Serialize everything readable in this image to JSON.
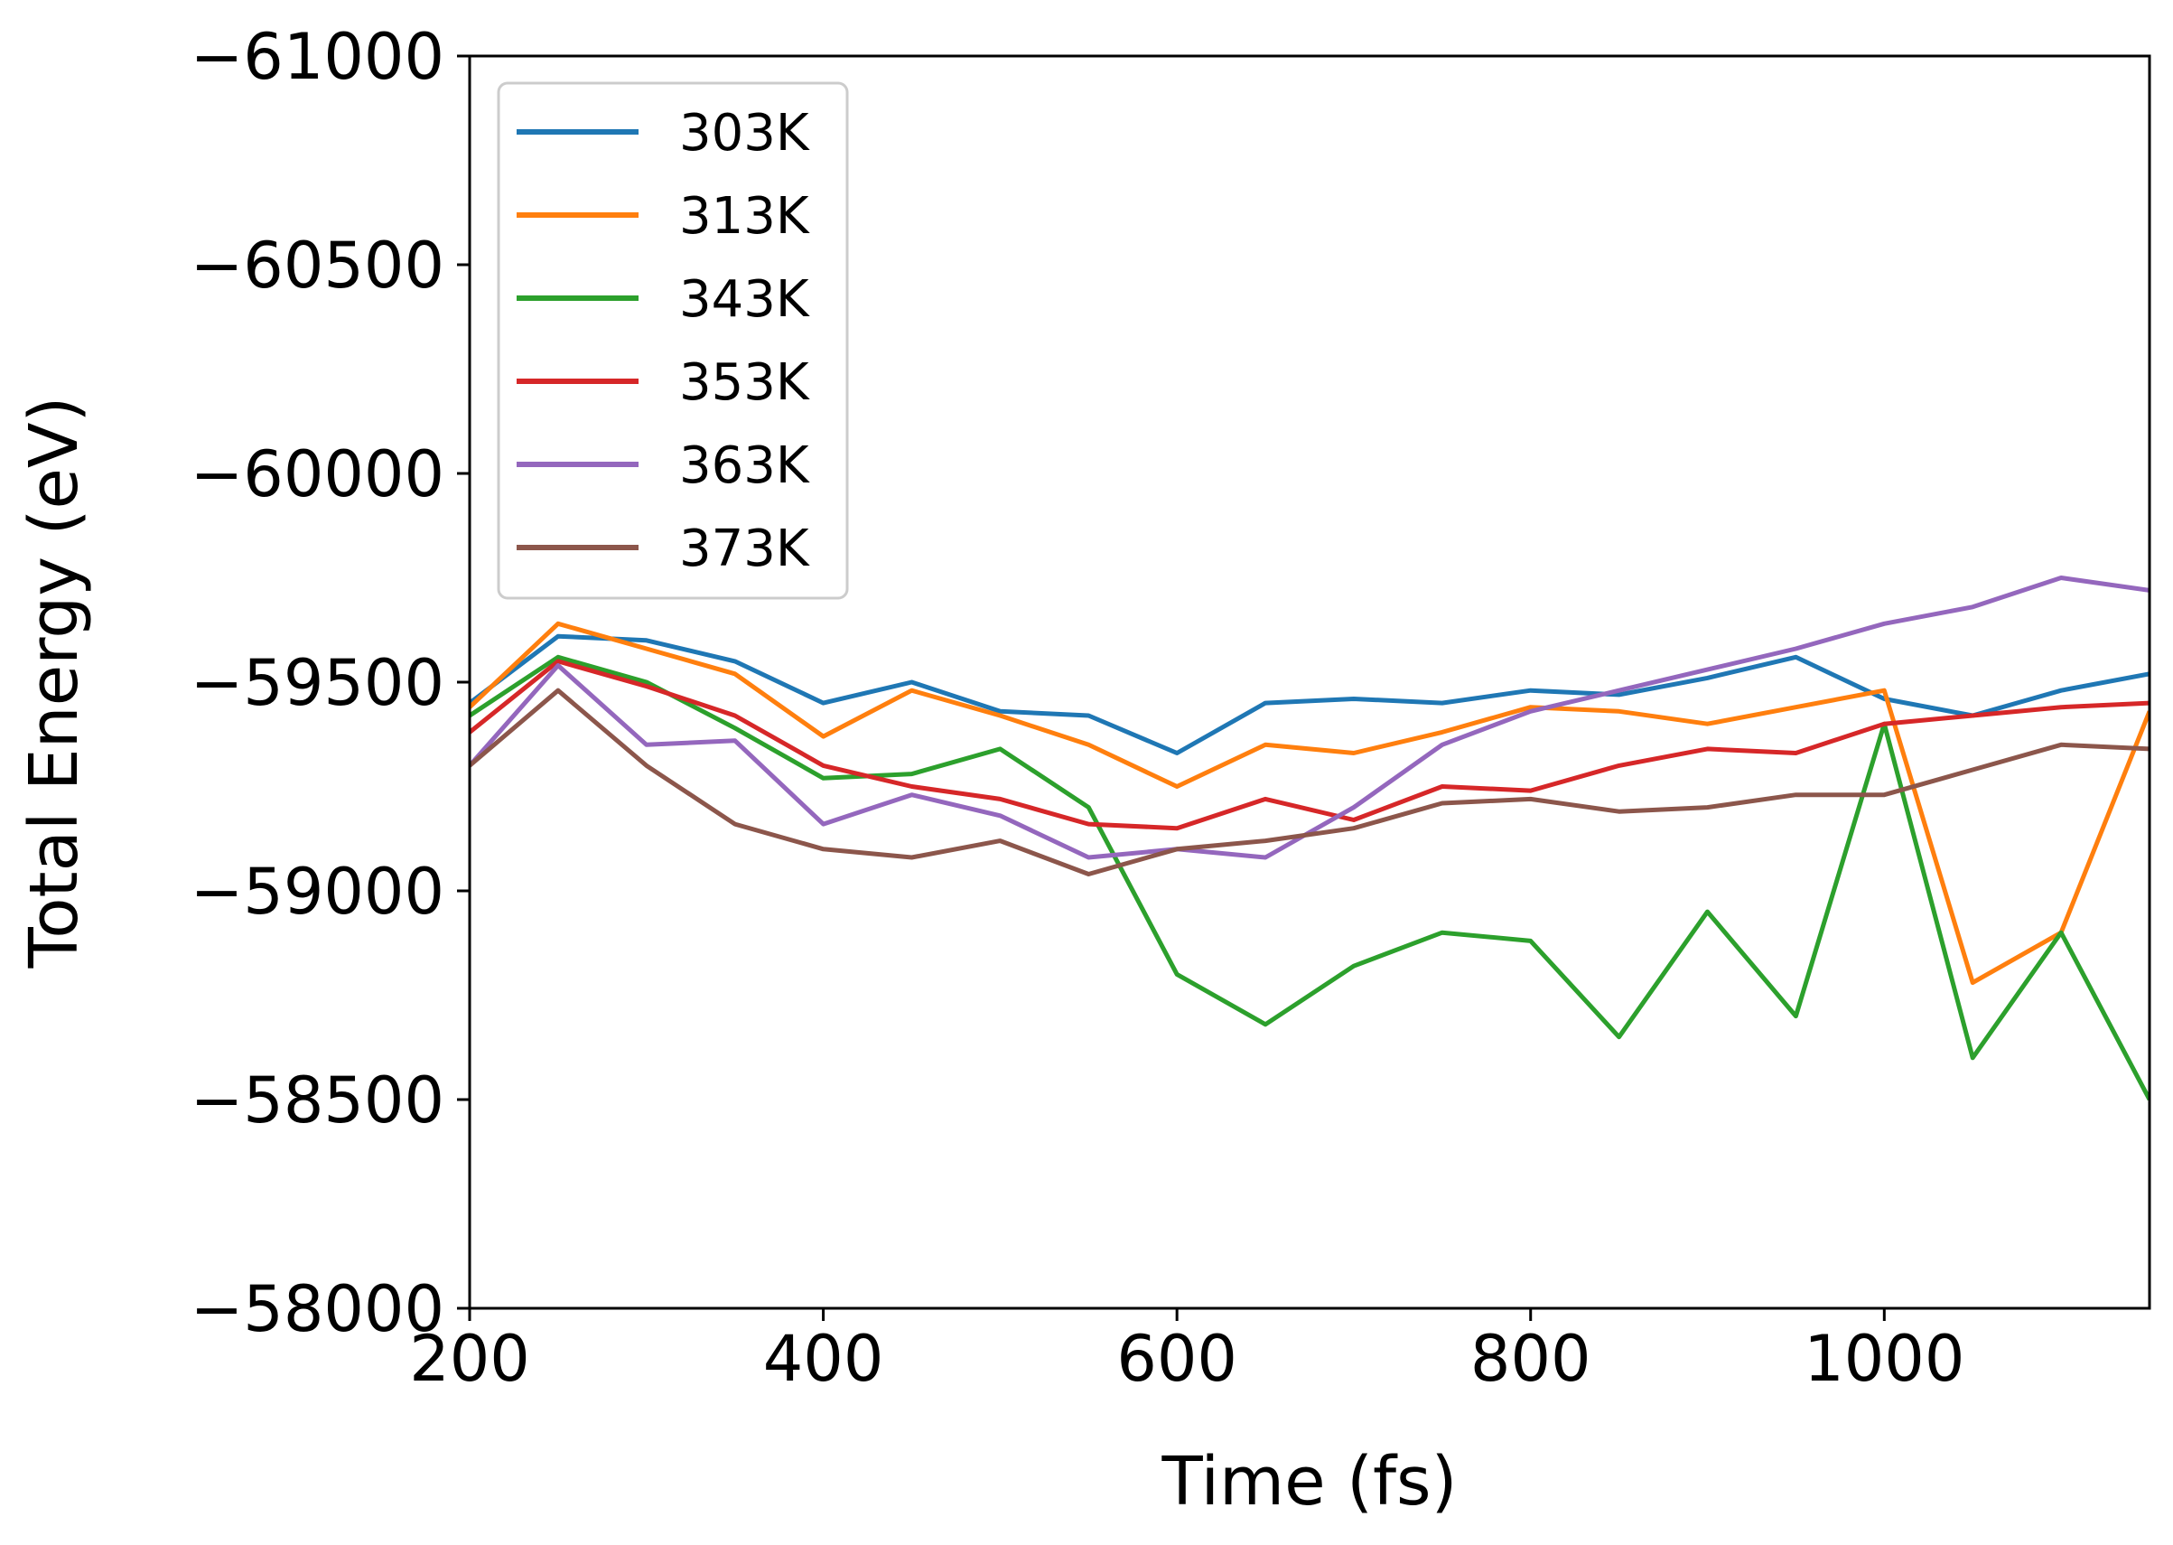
{
  "chart_data": {
    "type": "line",
    "title": "",
    "xlabel": "Time (fs)",
    "ylabel": "Total Energy (eV)",
    "xlim": [
      200,
      1150
    ],
    "ylim": [
      -61000,
      -58000
    ],
    "y_inverted": true,
    "xticks": [
      200,
      400,
      600,
      800,
      1000
    ],
    "yticks": [
      -61000,
      -60500,
      -60000,
      -59500,
      -59000,
      -58500,
      -58000
    ],
    "xtick_labels": [
      "200",
      "400",
      "600",
      "800",
      "1000"
    ],
    "ytick_labels": [
      "−61000",
      "−60500",
      "−60000",
      "−59500",
      "−59000",
      "−58500",
      "−58000"
    ],
    "grid": false,
    "legend_position": "top-left",
    "x": [
      200,
      250,
      300,
      350,
      400,
      450,
      500,
      550,
      600,
      650,
      700,
      750,
      800,
      850,
      900,
      950,
      1000,
      1050,
      1100,
      1150
    ],
    "series": [
      {
        "name": "303K",
        "color": "#1f77b4",
        "values": [
          -59450,
          -59610,
          -59600,
          -59550,
          -59450,
          -59500,
          -59430,
          -59420,
          -59330,
          -59450,
          -59460,
          -59450,
          -59480,
          -59470,
          -59510,
          -59560,
          -59460,
          -59420,
          -59480,
          -59520
        ]
      },
      {
        "name": "313K",
        "color": "#ff7f0e",
        "values": [
          -59440,
          -59640,
          -59580,
          -59520,
          -59370,
          -59480,
          -59420,
          -59350,
          -59250,
          -59350,
          -59330,
          -59380,
          -59440,
          -59430,
          -59400,
          -59440,
          -59480,
          -58780,
          -58900,
          -59430
        ]
      },
      {
        "name": "343K",
        "color": "#2ca02c",
        "values": [
          -59420,
          -59560,
          -59500,
          -59390,
          -59270,
          -59280,
          -59340,
          -59200,
          -58800,
          -58680,
          -58820,
          -58900,
          -58880,
          -58650,
          -58950,
          -58700,
          -59400,
          -58600,
          -58900,
          -58500
        ]
      },
      {
        "name": "353K",
        "color": "#d62728",
        "values": [
          -59380,
          -59550,
          -59490,
          -59420,
          -59300,
          -59250,
          -59220,
          -59160,
          -59150,
          -59220,
          -59170,
          -59250,
          -59240,
          -59300,
          -59340,
          -59330,
          -59400,
          -59420,
          -59440,
          -59450
        ]
      },
      {
        "name": "363K",
        "color": "#9467bd",
        "values": [
          -59300,
          -59540,
          -59350,
          -59360,
          -59160,
          -59230,
          -59180,
          -59080,
          -59100,
          -59080,
          -59200,
          -59350,
          -59430,
          -59480,
          -59530,
          -59580,
          -59640,
          -59680,
          -59750,
          -59720
        ]
      },
      {
        "name": "373K",
        "color": "#8c564b",
        "values": [
          -59300,
          -59480,
          -59300,
          -59160,
          -59100,
          -59080,
          -59120,
          -59040,
          -59100,
          -59120,
          -59150,
          -59210,
          -59220,
          -59190,
          -59200,
          -59230,
          -59230,
          -59290,
          -59350,
          -59340
        ]
      }
    ]
  }
}
